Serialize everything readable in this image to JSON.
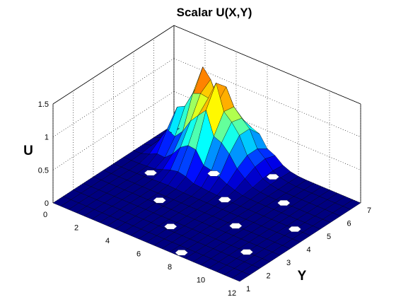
{
  "chart_data": {
    "type": "surface",
    "title": "Scalar U(X,Y)",
    "xlabel": "",
    "ylabel": "Y",
    "zlabel": "U",
    "xlim": [
      0,
      12
    ],
    "ylim": [
      1,
      7
    ],
    "zlim": [
      0,
      1.5
    ],
    "x_ticks": [
      "0",
      "2",
      "4",
      "6",
      "8",
      "10",
      "12"
    ],
    "y_ticks": [
      "1",
      "2",
      "3",
      "4",
      "5",
      "6",
      "7"
    ],
    "z_ticks": [
      "0",
      "0.5",
      "1",
      "1.5"
    ],
    "grid": true,
    "colormap": "jet",
    "peak_value": 1.4,
    "peak_location": {
      "x": 2.5,
      "y": 6.5
    },
    "secondary_ridge_location": {
      "x": 4,
      "y": 6
    },
    "surface_note_points": [
      {
        "x": 2.0,
        "y": 4.3
      },
      {
        "x": 4.0,
        "y": 3.2
      },
      {
        "x": 6.0,
        "y": 2.2
      },
      {
        "x": 8.0,
        "y": 1.2
      },
      {
        "x": 4.5,
        "y": 5.5
      },
      {
        "x": 6.5,
        "y": 4.5
      },
      {
        "x": 8.5,
        "y": 3.5
      },
      {
        "x": 10.5,
        "y": 2.5
      },
      {
        "x": 7.0,
        "y": 6.5
      },
      {
        "x": 9.0,
        "y": 5.5
      },
      {
        "x": 11.0,
        "y": 4.5
      }
    ]
  }
}
